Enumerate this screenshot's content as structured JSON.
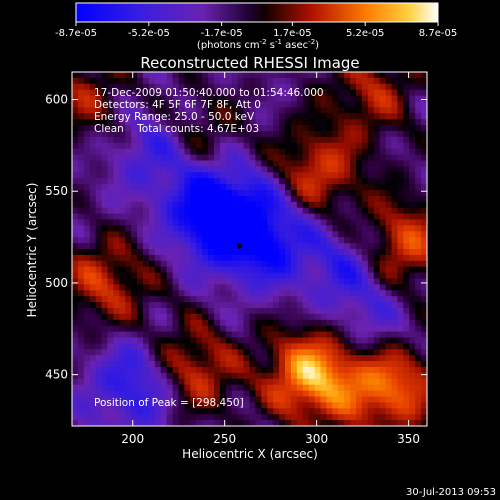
{
  "colorbar": {
    "ticks": [
      "-8.7e-05",
      "-5.2e-05",
      "-1.7e-05",
      "1.7e-05",
      "5.2e-05",
      "8.7e-05"
    ],
    "tick_values": [
      -8.7e-05,
      -5.2e-05,
      -1.7e-05,
      1.7e-05,
      5.2e-05,
      8.7e-05
    ],
    "range": [
      -8.7e-05,
      8.7e-05
    ],
    "unit_main": "(photons cm",
    "unit_sup1": "-2",
    "unit_mid": " s",
    "unit_sup2": "-1",
    "unit_mid2": " asec",
    "unit_sup3": "-2",
    "unit_end": ")"
  },
  "chart_data": {
    "type": "heatmap",
    "title": "Reconstructed RHESSI Image",
    "xlabel": "Heliocentric X (arcsec)",
    "ylabel": "Heliocentric Y (arcsec)",
    "xlim": [
      167,
      360
    ],
    "ylim": [
      422,
      615
    ],
    "xticks": [
      200,
      250,
      300,
      350
    ],
    "yticks": [
      450,
      500,
      550,
      600
    ],
    "peak": [
      298,
      450
    ],
    "annotations": [
      "17-Dec-2009 01:50:40.000 to 01:54:46.000",
      "Detectors: 4F 5F 6F 7F 8F, Att 0",
      "Energy Range: 25.0 - 50.0 keV",
      "Clean    Total counts: 4.67E+03"
    ],
    "peak_label": "Position of Peak = [298,450]",
    "colormap": [
      "#0000ff",
      "#5a22c8",
      "#300040",
      "#000000",
      "#b01000",
      "#ff7a00",
      "#ffffff"
    ],
    "bright_sources": [
      {
        "x": 298,
        "y": 450,
        "level": 1.0
      },
      {
        "x": 340,
        "y": 445,
        "level": 0.85
      },
      {
        "x": 230,
        "y": 452,
        "level": 0.7
      },
      {
        "x": 345,
        "y": 520,
        "level": 0.75
      },
      {
        "x": 300,
        "y": 560,
        "level": 0.6
      },
      {
        "x": 185,
        "y": 500,
        "level": 0.55
      },
      {
        "x": 175,
        "y": 600,
        "level": 0.4
      },
      {
        "x": 330,
        "y": 605,
        "level": 0.45
      },
      {
        "x": 232,
        "y": 580,
        "level": 0.5
      }
    ],
    "dark_regions": [
      {
        "x": 245,
        "y": 540,
        "level": -0.9
      },
      {
        "x": 270,
        "y": 525,
        "level": -0.7
      },
      {
        "x": 215,
        "y": 575,
        "level": -0.55
      },
      {
        "x": 205,
        "y": 445,
        "level": -0.65
      },
      {
        "x": 320,
        "y": 510,
        "level": -0.5
      },
      {
        "x": 330,
        "y": 470,
        "level": -0.35
      }
    ]
  },
  "footer": {
    "timestamp": "30-Jul-2013 09:53"
  }
}
